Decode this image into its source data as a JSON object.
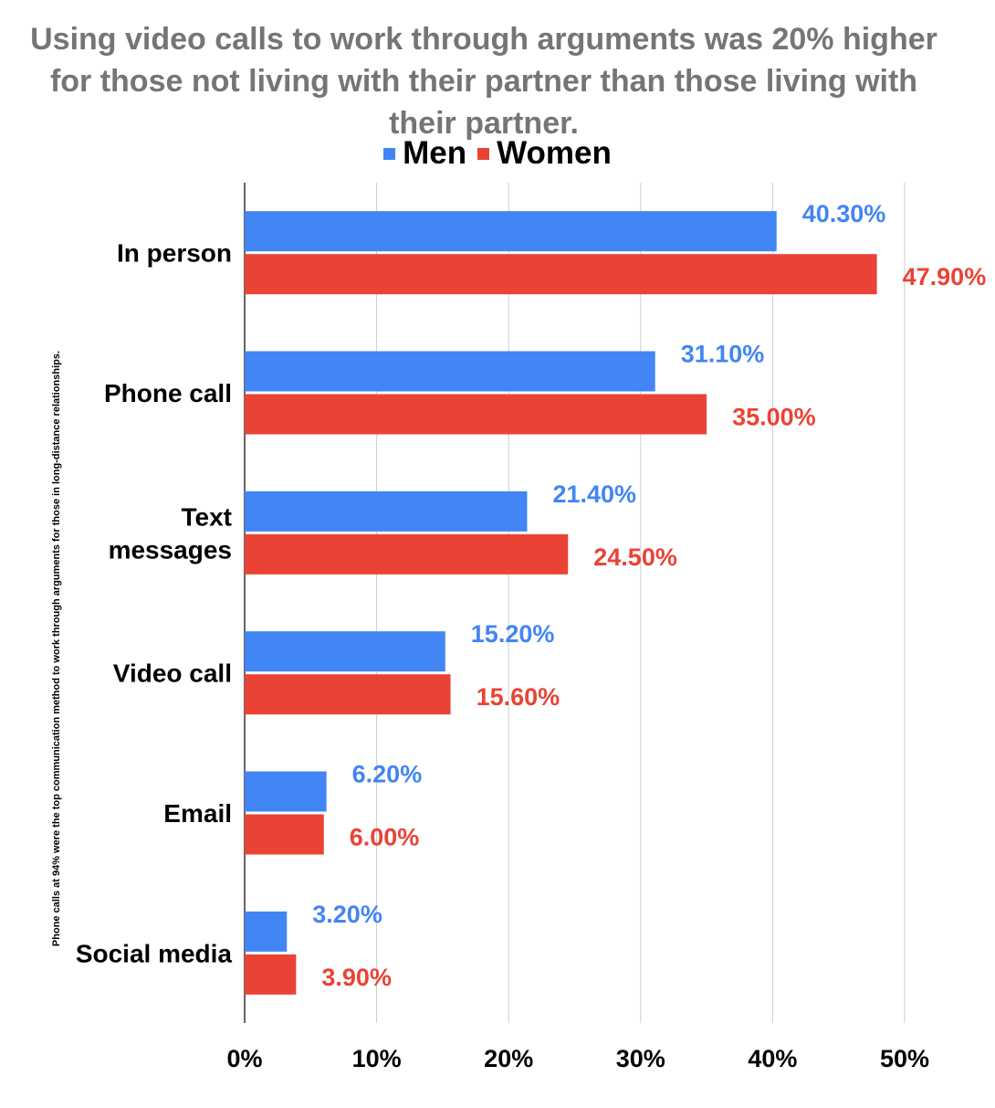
{
  "title": "Using video calls to work through arguments was 20% higher for those not living with their partner than those living with their partner.",
  "side_note": "Phone calls at 94% were the top communication method to work through arguments for those in long-distance relationships.",
  "colors": {
    "men": "#4285f4",
    "women": "#ea4335",
    "grid": "#cccccc",
    "axis": "#333333"
  },
  "chart_data": {
    "type": "bar",
    "orientation": "horizontal",
    "categories": [
      "In person",
      "Phone call",
      "Text messages",
      "Video call",
      "Email",
      "Social media"
    ],
    "series": [
      {
        "name": "Men",
        "values": [
          40.3,
          31.1,
          21.4,
          15.2,
          6.2,
          3.2
        ],
        "labels": [
          "40.30%",
          "31.10%",
          "21.40%",
          "15.20%",
          "6.20%",
          "3.20%"
        ]
      },
      {
        "name": "Women",
        "values": [
          47.9,
          35.0,
          24.5,
          15.6,
          6.0,
          3.9
        ],
        "labels": [
          "47.90%",
          "35.00%",
          "24.50%",
          "15.60%",
          "6.00%",
          "3.90%"
        ]
      }
    ],
    "xlim": [
      0,
      50
    ],
    "x_ticks": [
      0,
      10,
      20,
      30,
      40,
      50
    ],
    "x_tick_labels": [
      "0%",
      "10%",
      "20%",
      "30%",
      "40%",
      "50%"
    ],
    "grid": true,
    "legend_position": "top-center"
  }
}
